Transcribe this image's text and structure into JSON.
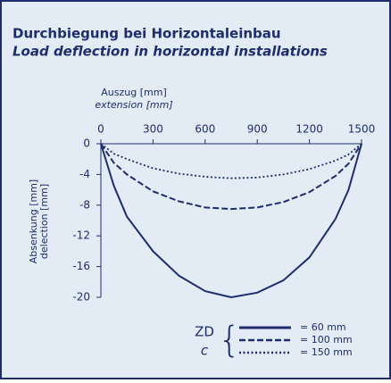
{
  "chart_data": {
    "type": "line",
    "title": "Durchbiegung bei Horizontaleinbau",
    "subtitle": "Load deflection in horizontal installations",
    "x_label": [
      "Auszug [mm]",
      "extension [mm]"
    ],
    "y_label": [
      "Absenkung [mm]",
      "delection [mm]"
    ],
    "x": [
      0,
      75,
      150,
      300,
      450,
      600,
      750,
      900,
      1050,
      1200,
      1350,
      1425,
      1500
    ],
    "series": [
      {
        "name": "= 60 mm",
        "color": "#1f2d6e",
        "dash": "solid",
        "values": [
          0,
          -5.5,
          -9.5,
          -14,
          -17.2,
          -19.2,
          -20,
          -19.4,
          -17.8,
          -14.8,
          -9.8,
          -6,
          0
        ]
      },
      {
        "name": "= 100 mm",
        "color": "#1f2d6e",
        "dash": "dashed",
        "values": [
          0,
          -2.5,
          -4,
          -6.2,
          -7.5,
          -8.3,
          -8.5,
          -8.3,
          -7.6,
          -6.3,
          -4.2,
          -2.6,
          0
        ]
      },
      {
        "name": "= 150 mm",
        "color": "#1f2d6e",
        "dash": "dotted",
        "values": [
          0,
          -1.3,
          -2,
          -3.2,
          -3.9,
          -4.3,
          -4.5,
          -4.4,
          -4,
          -3.3,
          -2.2,
          -1.4,
          0
        ]
      }
    ],
    "legend_title": [
      "ZD",
      "c"
    ],
    "xlim": [
      0,
      1500
    ],
    "xticks": [
      0,
      300,
      600,
      900,
      1200,
      1500
    ],
    "ylim": [
      -20,
      0
    ],
    "yticks": [
      0,
      -4,
      -8,
      -12,
      -16,
      -20
    ],
    "grid": false
  }
}
